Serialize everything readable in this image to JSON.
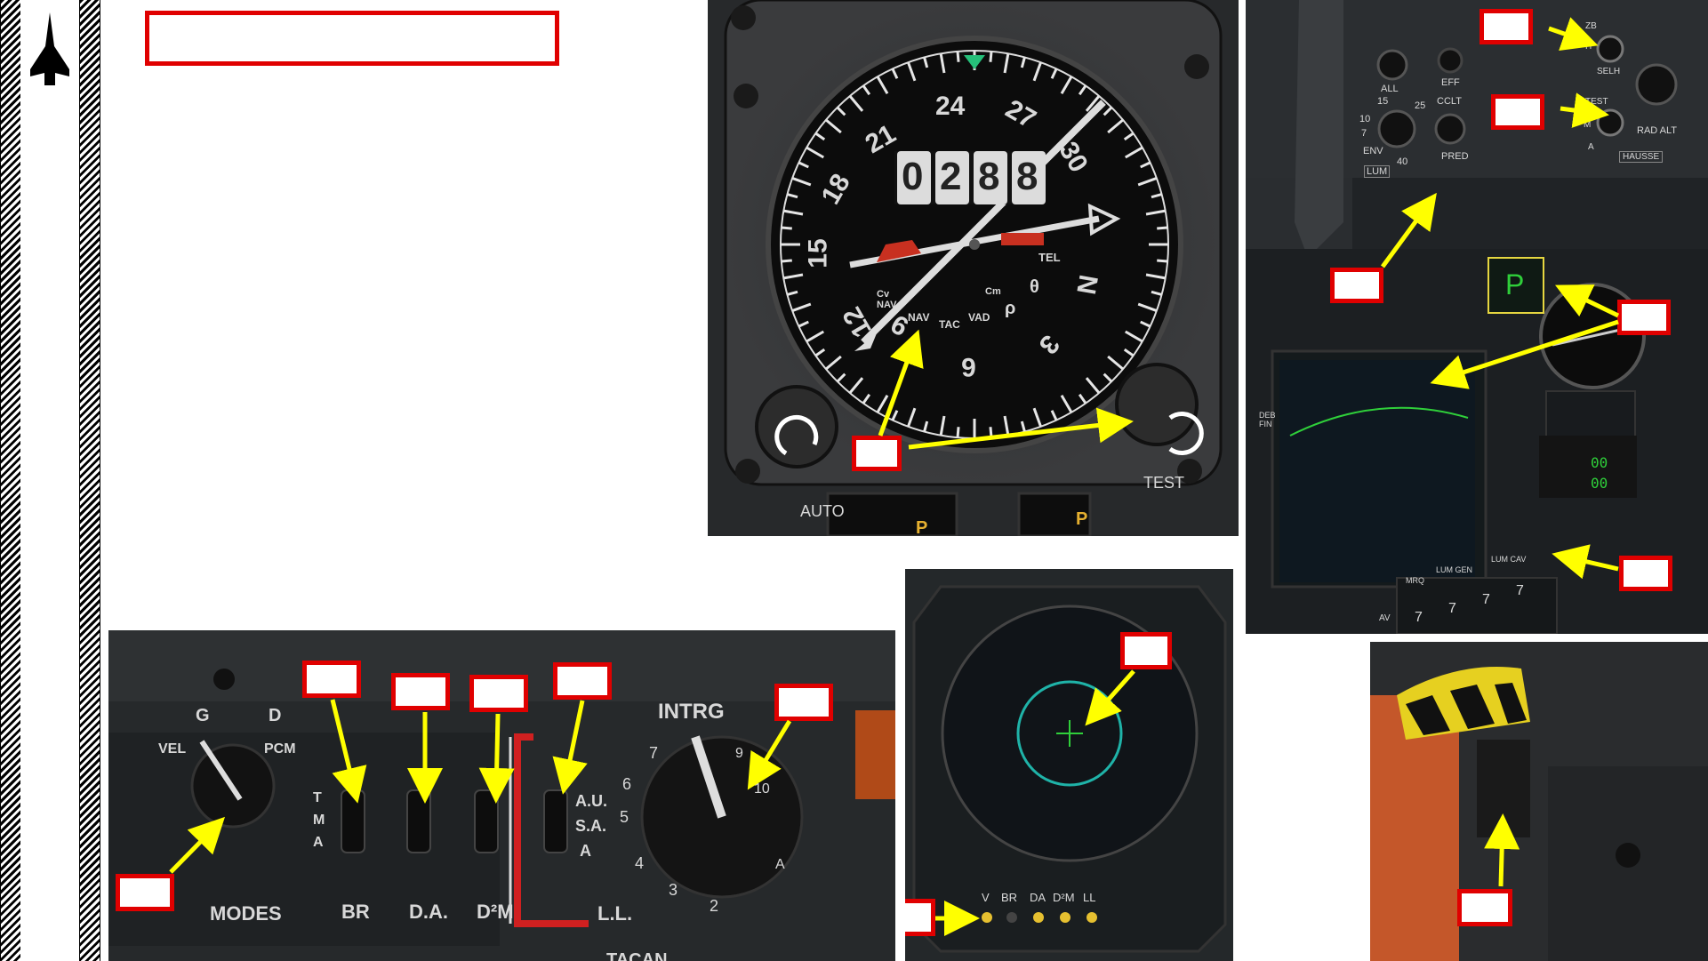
{
  "hsi": {
    "counter": [
      "0",
      "2",
      "8",
      "8"
    ],
    "compass": [
      "24",
      "27",
      "30",
      "N",
      "3",
      "6",
      "9",
      "12",
      "15",
      "18",
      "21"
    ],
    "tel": "TEL",
    "theta": "θ",
    "rho": "ρ",
    "cv_nav": "Cv NAV",
    "nav": "NAV",
    "tac": "TAC",
    "vad": "VAD",
    "cm": "Cm",
    "auto": "AUTO",
    "test": "TEST",
    "p1": "P",
    "p2": "P"
  },
  "cockpit": {
    "zb": "ZB",
    "h": "H",
    "selh": "SELH",
    "all": "ALL",
    "eff": "EFF",
    "cclt": "CCLT",
    "test": "TEST",
    "m": "M",
    "a": "A",
    "rad_alt": "RAD ALT",
    "env": "ENV",
    "lum": "LUM",
    "pred": "PRED",
    "hausse": "HAUSSE",
    "scale": [
      "10",
      "15",
      "25",
      "7",
      "40"
    ],
    "p_callout": "P",
    "deb_fin": "DEB FIN",
    "mrq": "MRQ",
    "lum_gen": "LUM GEN",
    "lum_cav": "LUM CAV",
    "av": "AV",
    "digits": [
      "7",
      "7",
      "7",
      "7"
    ],
    "led": [
      "00",
      "00"
    ]
  },
  "tacan_panel": {
    "modes": "MODES",
    "g": "G",
    "d": "D",
    "vel": "VEL",
    "pcm": "PCM",
    "tma": [
      "T",
      "M",
      "A"
    ],
    "br": "BR",
    "da": "D.A.",
    "d2m": "D²M",
    "intrg": "INTRG",
    "au": "A.U.",
    "sa": "S.A.",
    "a": "A",
    "ll": "L.L.",
    "dial": [
      "7",
      "6",
      "5",
      "4",
      "3",
      "2",
      "9",
      "10",
      "A"
    ],
    "tacan": "TACAN"
  },
  "scope": {
    "lights": [
      "V",
      "BR",
      "DA",
      "D²M",
      "LL"
    ]
  }
}
